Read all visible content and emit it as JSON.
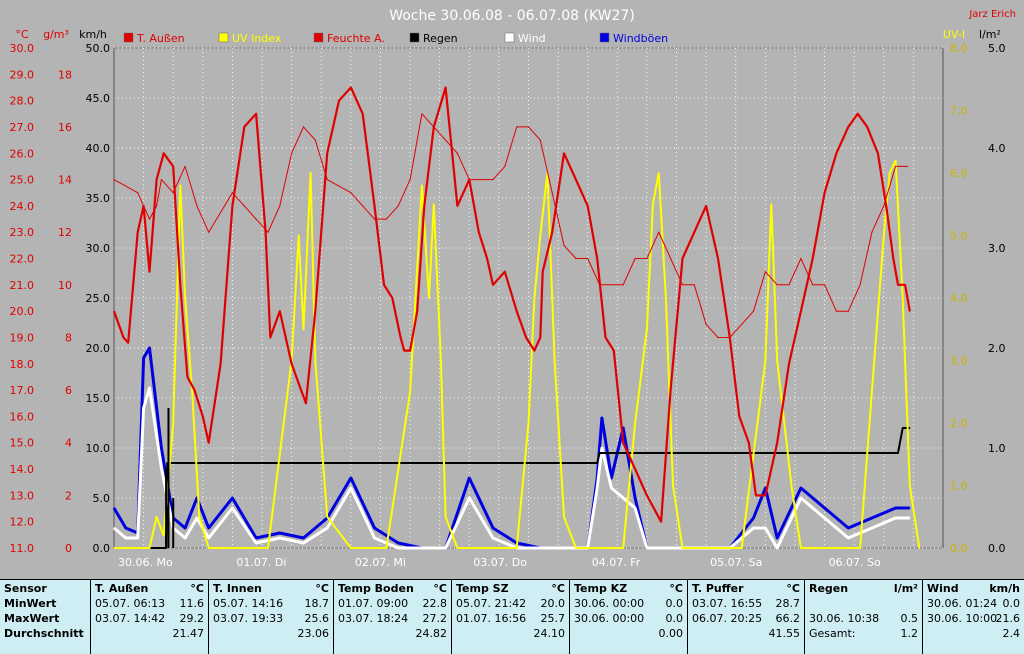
{
  "header": {
    "title": "Woche 30.06.08 - 06.07.08 (KW27)",
    "author": "Jarz Erich"
  },
  "axes": {
    "temp_unit": "°C",
    "humidity_unit": "g/m³",
    "wind_unit": "km/h",
    "uv_unit": "UV-I",
    "rain_unit": "l/m²",
    "temp_ticks": [
      "30.0",
      "29.0",
      "28.0",
      "27.0",
      "26.0",
      "25.0",
      "24.0",
      "23.0",
      "22.0",
      "21.0",
      "20.0",
      "19.0",
      "18.0",
      "17.0",
      "16.0",
      "15.0",
      "14.0",
      "13.0",
      "12.0",
      "11.0"
    ],
    "hum_ticks": [
      "18",
      "16",
      "14",
      "12",
      "10",
      "8",
      "6",
      "4",
      "2",
      "0"
    ],
    "wind_ticks": [
      "50.0",
      "45.0",
      "40.0",
      "35.0",
      "30.0",
      "25.0",
      "20.0",
      "15.0",
      "10.0",
      "5.0",
      "0.0"
    ],
    "uv_ticks": [
      "8.0",
      "7.0",
      "6.0",
      "5.0",
      "4.0",
      "3.0",
      "2.0",
      "1.0",
      "0.0"
    ],
    "rain_ticks": [
      "5.0",
      "4.0",
      "3.0",
      "2.0",
      "1.0",
      "0.0"
    ],
    "day_labels": [
      "30.06. Mo",
      "01.07. Di",
      "02.07. Mi",
      "03.07. Do",
      "04.07. Fr",
      "05.07. Sa",
      "06.07. So"
    ]
  },
  "legend": [
    {
      "label": "T. Außen",
      "color": "#e00000"
    },
    {
      "label": "UV Index",
      "color": "#ffff00"
    },
    {
      "label": "Feuchte A.",
      "color": "#e00000"
    },
    {
      "label": "Regen",
      "color": "#000000"
    },
    {
      "label": "Wind",
      "color": "#ffffff"
    },
    {
      "label": "Windböen",
      "color": "#0000e0"
    }
  ],
  "colors": {
    "plot_bg": "#b4b4b4",
    "grid": "#ffffff",
    "temp": "#e00000",
    "humidity": "#e00000",
    "uv": "#ffff00",
    "rain": "#000000",
    "wind": "#ffffff",
    "gusts": "#0000e0",
    "axis_left": "#e00000",
    "axis_wind": "#000000",
    "axis_uv": "#b8a000"
  },
  "chart_data": {
    "type": "line",
    "title": "Woche 30.06.08 - 06.07.08 (KW27)",
    "x_unit": "days since 30.06.08 00:00",
    "xlim": [
      0,
      7
    ],
    "series": [
      {
        "name": "T. Außen",
        "unit": "°C",
        "axis": "temp",
        "ylim": [
          11,
          30
        ],
        "x": [
          0,
          0.08,
          0.12,
          0.2,
          0.25,
          0.3,
          0.36,
          0.42,
          0.5,
          0.56,
          0.62,
          0.68,
          0.75,
          0.8,
          0.9,
          1.0,
          1.1,
          1.2,
          1.28,
          1.32,
          1.4,
          1.5,
          1.58,
          1.62,
          1.7,
          1.8,
          1.9,
          2.0,
          2.1,
          2.2,
          2.28,
          2.35,
          2.42,
          2.45,
          2.5,
          2.56,
          2.62,
          2.7,
          2.8,
          2.9,
          3.0,
          3.08,
          3.15,
          3.2,
          3.3,
          3.4,
          3.48,
          3.55,
          3.6,
          3.62,
          3.7,
          3.8,
          3.9,
          4.0,
          4.08,
          4.15,
          4.22,
          4.3,
          4.4,
          4.5,
          4.56,
          4.62,
          4.7,
          4.8,
          4.9,
          5.0,
          5.1,
          5.2,
          5.28,
          5.36,
          5.42,
          5.5,
          5.6,
          5.7,
          5.8,
          5.9,
          6.0,
          6.1,
          6.2,
          6.28,
          6.36,
          6.45,
          6.52,
          6.58,
          6.62,
          6.68,
          6.72
        ],
        "values": [
          20,
          19,
          18.8,
          23,
          24,
          21.5,
          25,
          26,
          25.5,
          21,
          17.5,
          17,
          16,
          15,
          18,
          24,
          27,
          27.5,
          23,
          19,
          20,
          18,
          17,
          16.5,
          20,
          26,
          28,
          28.5,
          27.5,
          24,
          21,
          20.5,
          19,
          18.5,
          18.5,
          20,
          24,
          27,
          28.5,
          24,
          25,
          23,
          22,
          21,
          21.5,
          20,
          19,
          18.5,
          19,
          21.5,
          23,
          26,
          25,
          24,
          22,
          19,
          18.5,
          15,
          14,
          13,
          12.5,
          12,
          17,
          22,
          23,
          24,
          22,
          19,
          16,
          15,
          13,
          13,
          15,
          18,
          20,
          22,
          24.5,
          26,
          27,
          27.5,
          27,
          26,
          24,
          22,
          21,
          21,
          20
        ]
      },
      {
        "name": "Feuchte A.",
        "unit": "g/m³",
        "axis": "humidity",
        "ylim": [
          0,
          19
        ],
        "x": [
          0,
          0.2,
          0.3,
          0.36,
          0.4,
          0.5,
          0.6,
          0.7,
          0.8,
          1.0,
          1.1,
          1.2,
          1.3,
          1.4,
          1.5,
          1.6,
          1.7,
          1.8,
          2.0,
          2.1,
          2.2,
          2.3,
          2.4,
          2.5,
          2.6,
          2.7,
          2.8,
          2.9,
          3.0,
          3.1,
          3.2,
          3.3,
          3.4,
          3.5,
          3.6,
          3.7,
          3.8,
          3.9,
          4.0,
          4.1,
          4.2,
          4.3,
          4.4,
          4.5,
          4.6,
          4.7,
          4.8,
          4.9,
          5.0,
          5.1,
          5.2,
          5.3,
          5.4,
          5.5,
          5.6,
          5.7,
          5.8,
          5.9,
          6.0,
          6.1,
          6.2,
          6.3,
          6.4,
          6.5,
          6.6,
          6.7
        ],
        "values": [
          14,
          13.5,
          12.5,
          13,
          14,
          13.5,
          14.5,
          13,
          12,
          13.5,
          13,
          12.5,
          12,
          13,
          15,
          16,
          15.5,
          14,
          13.5,
          13,
          12.5,
          12.5,
          13,
          14,
          16.5,
          16,
          15.5,
          15,
          14,
          14,
          14,
          14.5,
          16,
          16,
          15.5,
          13.5,
          11.5,
          11,
          11,
          10,
          10,
          10,
          11,
          11,
          12,
          11,
          10,
          10,
          8.5,
          8,
          8,
          8.5,
          9,
          10.5,
          10,
          10,
          11,
          10,
          10,
          9,
          9,
          10,
          12,
          13,
          14.5,
          14.5
        ]
      },
      {
        "name": "UV Index",
        "unit": "UV-I",
        "axis": "uv",
        "ylim": [
          0,
          8
        ],
        "x": [
          0,
          0.3,
          0.36,
          0.42,
          0.5,
          0.56,
          0.6,
          0.66,
          0.72,
          0.8,
          1.0,
          1.1,
          1.3,
          1.5,
          1.56,
          1.6,
          1.66,
          1.7,
          1.8,
          2.0,
          2.3,
          2.5,
          2.6,
          2.66,
          2.7,
          2.76,
          2.8,
          2.9,
          3.1,
          3.4,
          3.5,
          3.55,
          3.6,
          3.66,
          3.72,
          3.8,
          3.9,
          4.1,
          4.3,
          4.4,
          4.5,
          4.55,
          4.6,
          4.66,
          4.72,
          4.8,
          4.9,
          5.1,
          5.3,
          5.4,
          5.5,
          5.55,
          5.6,
          5.66,
          5.72,
          5.8,
          5.9,
          6.1,
          6.3,
          6.4,
          6.5,
          6.55,
          6.6,
          6.66,
          6.72,
          6.8
        ],
        "values": [
          0,
          0,
          0.5,
          0.2,
          2,
          5.8,
          4,
          2.5,
          0.5,
          0,
          0,
          0,
          0,
          3,
          5,
          3.5,
          6,
          3,
          0.5,
          0,
          0,
          2.5,
          5.8,
          4,
          5.5,
          3,
          0.5,
          0,
          0,
          0,
          2,
          4,
          5,
          6,
          3,
          0.5,
          0,
          0,
          0,
          2,
          3.5,
          5.5,
          6,
          4,
          1,
          0,
          0,
          0,
          0,
          1.5,
          3,
          5.5,
          3,
          2,
          1,
          0,
          0,
          0,
          0,
          2.5,
          5,
          6,
          6.2,
          4,
          1,
          0
        ]
      },
      {
        "name": "Wind",
        "unit": "km/h",
        "axis": "wind",
        "ylim": [
          0,
          50
        ],
        "x": [
          0,
          0.1,
          0.2,
          0.25,
          0.3,
          0.4,
          0.5,
          0.6,
          0.7,
          0.8,
          1.0,
          1.2,
          1.4,
          1.6,
          1.8,
          2.0,
          2.2,
          2.4,
          2.6,
          2.8,
          3.0,
          3.2,
          3.4,
          3.6,
          3.8,
          4.0,
          4.08,
          4.12,
          4.2,
          4.3,
          4.4,
          4.5,
          4.6,
          4.8,
          5.0,
          5.2,
          5.4,
          5.5,
          5.6,
          5.8,
          6.0,
          6.2,
          6.4,
          6.6,
          6.72
        ],
        "values": [
          2,
          1,
          1,
          14,
          16,
          8,
          2,
          1,
          3,
          1,
          4,
          0.5,
          1,
          0.5,
          2,
          6,
          1,
          0,
          0,
          0,
          5,
          1,
          0,
          0,
          0,
          0,
          6,
          10,
          6,
          5,
          4,
          0,
          0,
          0,
          0,
          0,
          2,
          2,
          0,
          5,
          3,
          1,
          2,
          3,
          3
        ]
      },
      {
        "name": "Windböen",
        "unit": "km/h",
        "axis": "wind",
        "ylim": [
          0,
          50
        ],
        "x": [
          0,
          0.1,
          0.2,
          0.25,
          0.3,
          0.4,
          0.5,
          0.6,
          0.7,
          0.8,
          1.0,
          1.2,
          1.4,
          1.6,
          1.8,
          2.0,
          2.2,
          2.4,
          2.6,
          2.8,
          3.0,
          3.2,
          3.4,
          3.6,
          3.8,
          4.0,
          4.08,
          4.12,
          4.2,
          4.3,
          4.4,
          4.5,
          4.6,
          4.8,
          5.0,
          5.2,
          5.4,
          5.5,
          5.6,
          5.8,
          6.0,
          6.2,
          6.4,
          6.6,
          6.72
        ],
        "values": [
          4,
          2,
          1.5,
          19,
          20,
          10,
          3,
          2,
          5,
          2,
          5,
          1,
          1.5,
          1,
          3,
          7,
          2,
          0.5,
          0,
          0,
          7,
          2,
          0.5,
          0,
          0,
          0,
          7,
          13,
          7,
          12,
          5,
          0,
          0,
          0,
          0,
          0,
          3,
          6,
          1,
          6,
          4,
          2,
          3,
          4,
          4
        ]
      },
      {
        "name": "Regen",
        "unit": "l/m²",
        "axis": "rain",
        "ylim": [
          0,
          5
        ],
        "x": [
          0,
          0.44,
          0.45,
          4.08,
          4.1,
          6.62,
          6.66,
          6.72
        ],
        "values": [
          0,
          0,
          0.85,
          0.85,
          0.95,
          0.95,
          1.2,
          1.2
        ]
      }
    ]
  },
  "table": {
    "sensor_col": {
      "header": "Sensor",
      "rows": [
        "MinWert",
        "MaxWert",
        "Durchschnitt"
      ]
    },
    "columns": [
      {
        "name": "T. Außen",
        "unit": "°C",
        "min": [
          "05.07.",
          "06:13",
          "11.6"
        ],
        "max": [
          "03.07.",
          "14:42",
          "29.2"
        ],
        "avg": "21.47"
      },
      {
        "name": "T. Innen",
        "unit": "°C",
        "min": [
          "05.07.",
          "14:16",
          "18.7"
        ],
        "max": [
          "03.07.",
          "19:33",
          "25.6"
        ],
        "avg": "23.06"
      },
      {
        "name": "Temp Boden",
        "unit": "°C",
        "min": [
          "01.07.",
          "09:00",
          "22.8"
        ],
        "max": [
          "03.07.",
          "18:24",
          "27.2"
        ],
        "avg": "24.82"
      },
      {
        "name": "Temp SZ",
        "unit": "°C",
        "min": [
          "05.07.",
          "21:42",
          "20.0"
        ],
        "max": [
          "01.07.",
          "16:56",
          "25.7"
        ],
        "avg": "24.10"
      },
      {
        "name": "Temp KZ",
        "unit": "°C",
        "min": [
          "30.06.",
          "00:00",
          "0.0"
        ],
        "max": [
          "30.06.",
          "00:00",
          "0.0"
        ],
        "avg": "0.00"
      },
      {
        "name": "T. Puffer",
        "unit": "°C",
        "min": [
          "03.07.",
          "16:55",
          "28.7"
        ],
        "max": [
          "06.07.",
          "20:25",
          "66.2"
        ],
        "avg": "41.55"
      },
      {
        "name": "Regen",
        "unit": "l/m²",
        "min": [
          "",
          "",
          ""
        ],
        "max": [
          "30.06.",
          "10:38",
          "0.5"
        ],
        "avg_label": "Gesamt:",
        "avg": "1.2"
      },
      {
        "name": "Wind",
        "unit": "km/h",
        "min": [
          "30.06.",
          "01:24",
          "0.0"
        ],
        "max": [
          "30.06.",
          "10:00",
          "21.6"
        ],
        "avg": "2.4"
      }
    ]
  }
}
